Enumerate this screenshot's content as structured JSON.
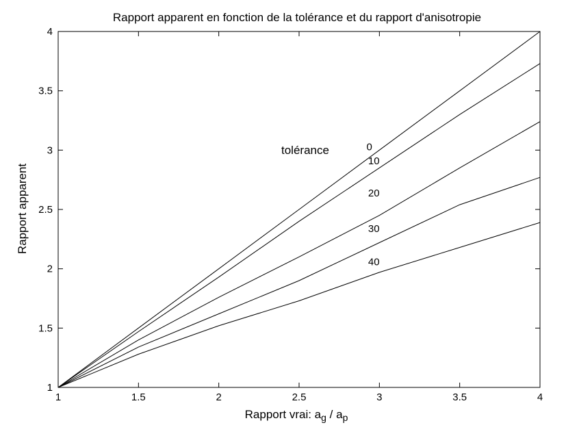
{
  "chart_data": {
    "type": "line",
    "title": "Rapport apparent en fonction de la tolérance et du rapport d'anisotropie",
    "xlabel": "Rapport vrai: a",
    "xlabel_sub1": "g",
    "xlabel_mid": " / a",
    "xlabel_sub2": "p",
    "ylabel": "Rapport apparent",
    "xlim": [
      1,
      4
    ],
    "ylim": [
      1,
      4
    ],
    "xticks": [
      1,
      1.5,
      2,
      2.5,
      3,
      3.5,
      4
    ],
    "xtick_labels": [
      "1",
      "1.5",
      "2",
      "2.5",
      "3",
      "3.5",
      "4"
    ],
    "yticks": [
      1,
      1.5,
      2,
      2.5,
      3,
      3.5,
      4
    ],
    "ytick_labels": [
      "1",
      "1.5",
      "2",
      "2.5",
      "3",
      "3.5",
      "4"
    ],
    "grid": false,
    "legend_title": "tolérance",
    "x": [
      1,
      1.5,
      2,
      2.5,
      3,
      3.5,
      4
    ],
    "series": [
      {
        "name": "0",
        "values": [
          1,
          1.5,
          2.0,
          2.5,
          3.0,
          3.5,
          4.0
        ],
        "label_at": [
          2.92,
          3.0
        ]
      },
      {
        "name": "10",
        "values": [
          1,
          1.47,
          1.93,
          2.4,
          2.85,
          3.3,
          3.73
        ],
        "label_at": [
          2.93,
          2.88
        ]
      },
      {
        "name": "20",
        "values": [
          1,
          1.4,
          1.76,
          2.1,
          2.45,
          2.85,
          3.24
        ],
        "label_at": [
          2.93,
          2.61
        ]
      },
      {
        "name": "30",
        "values": [
          1,
          1.34,
          1.62,
          1.9,
          2.22,
          2.54,
          2.77
        ],
        "label_at": [
          2.93,
          2.31
        ]
      },
      {
        "name": "40",
        "values": [
          1,
          1.28,
          1.52,
          1.73,
          1.97,
          2.18,
          2.39
        ],
        "label_at": [
          2.93,
          2.03
        ]
      }
    ]
  }
}
